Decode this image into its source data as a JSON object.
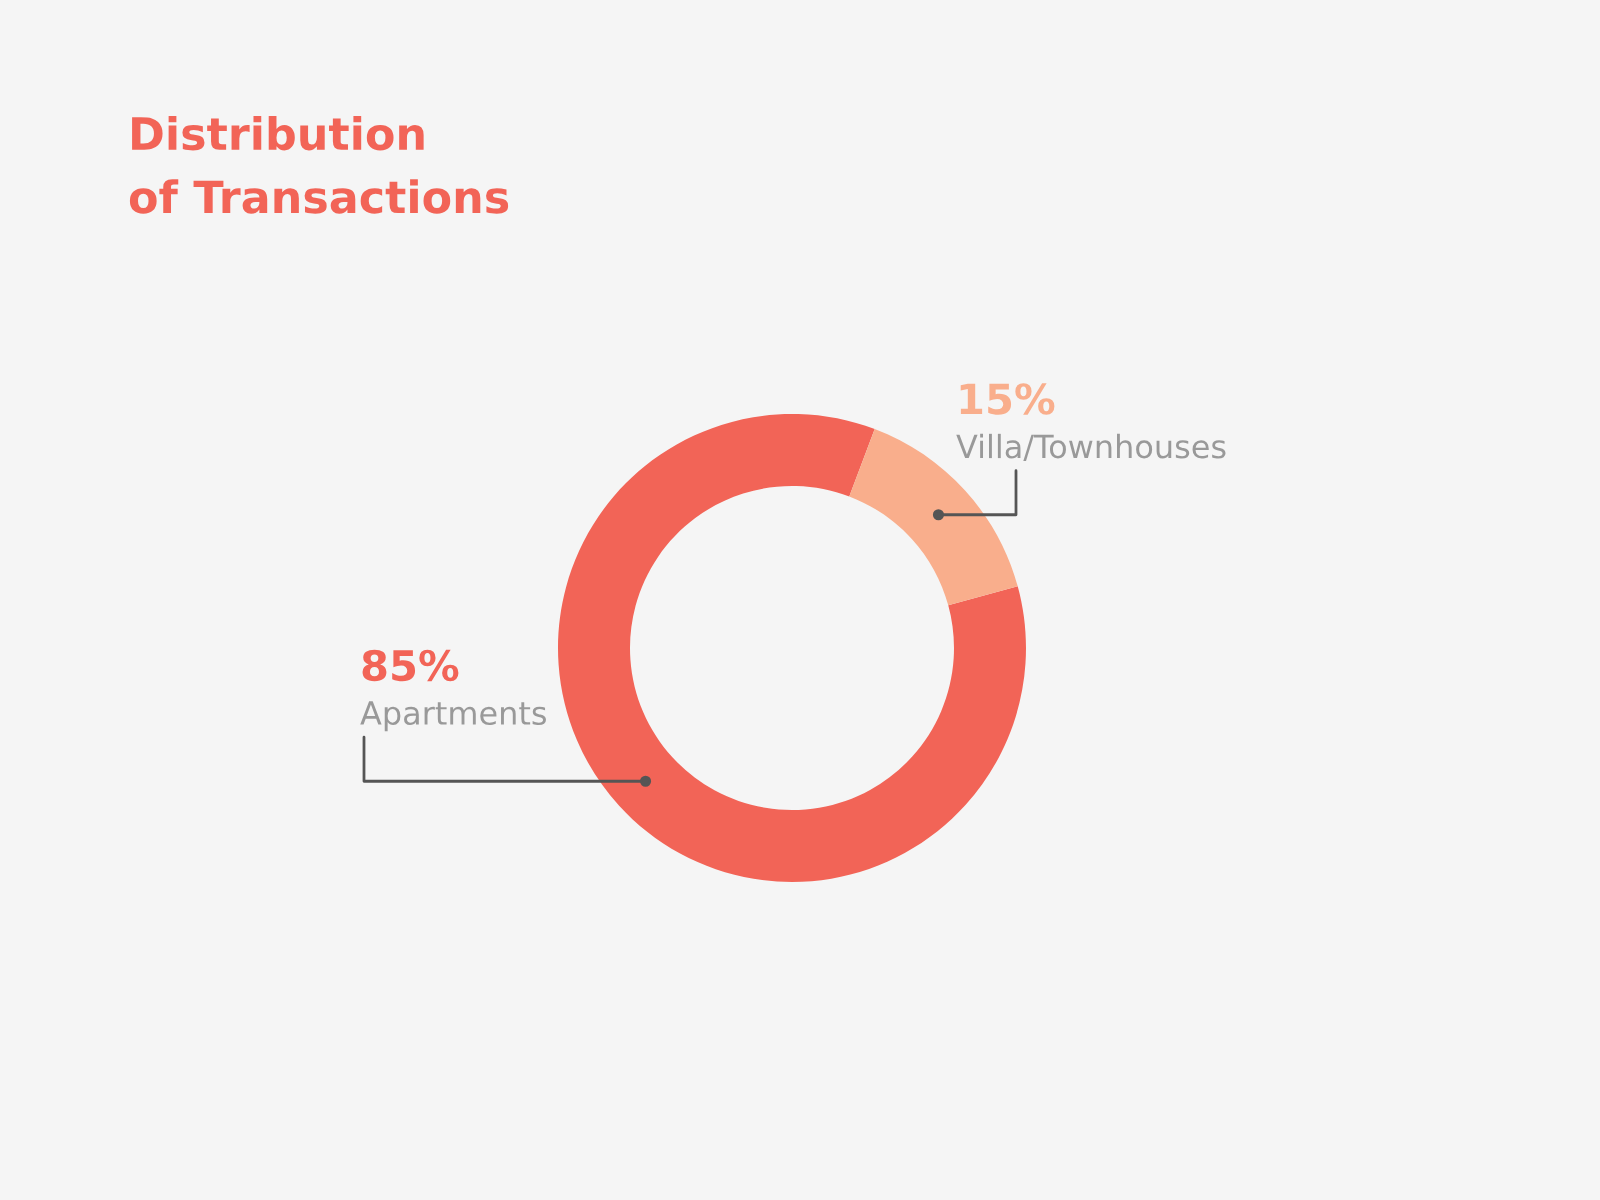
{
  "chart_data": {
    "type": "donut",
    "title": "Distribution\nof Transactions",
    "categories": [
      "Apartments",
      "Villa/Townhouses"
    ],
    "values": [
      85,
      15
    ],
    "colors": [
      "#f26457",
      "#f9ae8c"
    ],
    "value_labels": [
      "85%",
      "15%"
    ],
    "legend": false
  }
}
